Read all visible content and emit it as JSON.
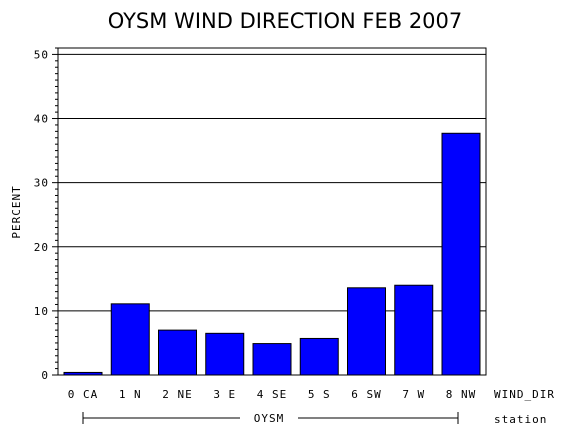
{
  "chart_data": {
    "type": "bar",
    "title": "OYSM WIND DIRECTION FEB 2007",
    "ylabel": "PERCENT",
    "xlabel": "WIND_DIR",
    "group_label": "OYSM",
    "group_axis_label": "station",
    "ylim": [
      0,
      51
    ],
    "yticks": [
      "0",
      "10",
      "20",
      "30",
      "40",
      "50"
    ],
    "grid": true,
    "categories": [
      "0 CA",
      "1 N",
      "2 NE",
      "3 E",
      "4 SE",
      "5 S",
      "6 SW",
      "7 W",
      "8 NW"
    ],
    "values": [
      0.4,
      11.1,
      7.0,
      6.5,
      4.9,
      5.7,
      13.6,
      14.0,
      37.7
    ],
    "bar_color": "#0000ff"
  }
}
